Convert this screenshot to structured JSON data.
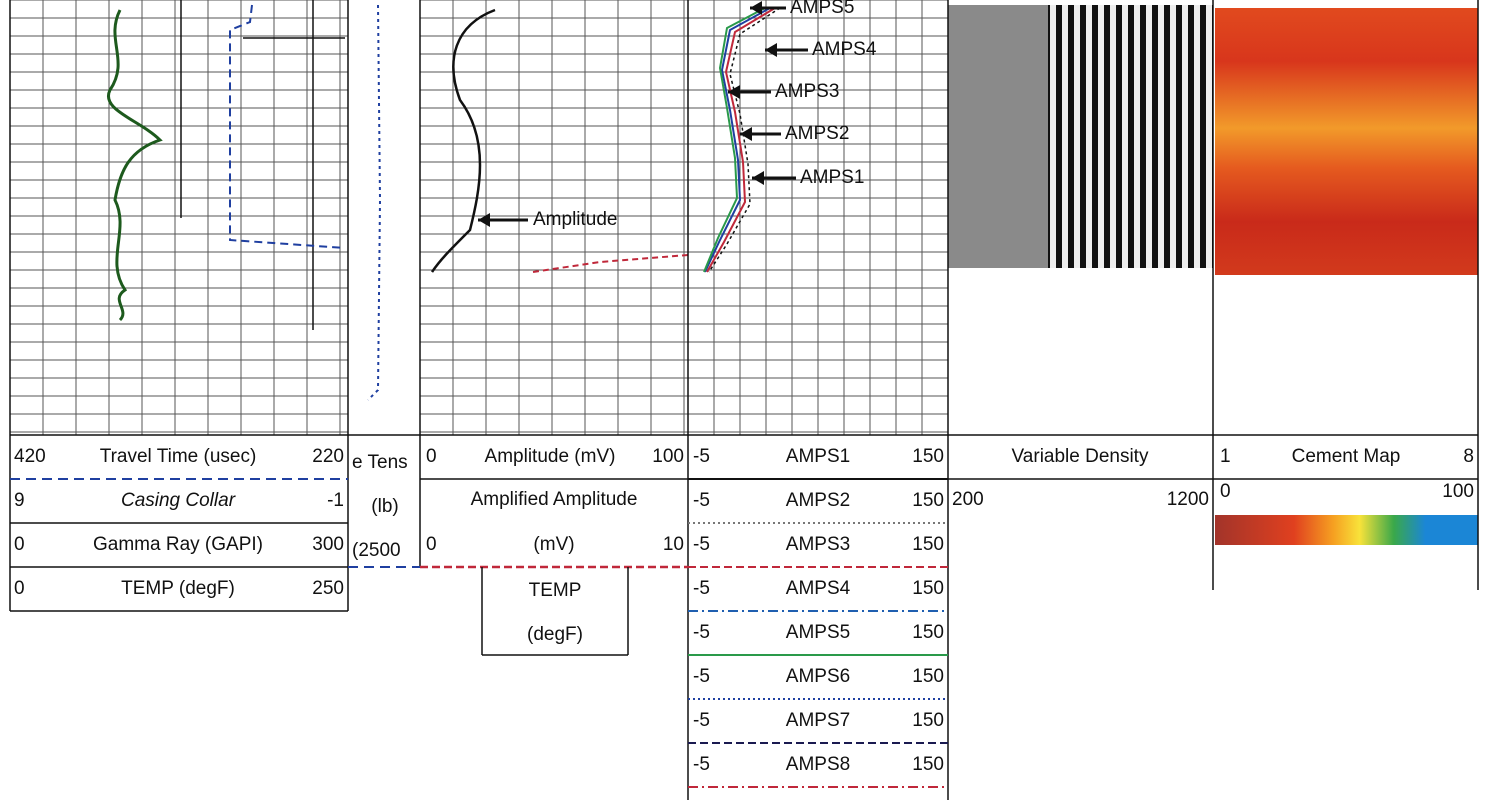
{
  "track_1_header": {
    "rows": [
      [
        "420",
        "Travel Time (usec)",
        "220"
      ],
      [
        "9",
        "Casing Collar",
        "-1"
      ],
      [
        "0",
        "Gamma Ray (GAPI)",
        "300"
      ],
      [
        "0",
        "TEMP (degF)",
        "250"
      ]
    ]
  },
  "track_2_header": [
    "e Tens",
    "(lb)",
    "(2500"
  ],
  "track_3_header": {
    "amplitude": [
      "0",
      "Amplitude (mV)",
      "100"
    ],
    "amplified_title": "Amplified Amplitude",
    "amplified": [
      "0",
      "(mV)",
      "10"
    ],
    "temp": [
      "TEMP",
      "(degF)"
    ]
  },
  "track_4_header": {
    "rows": [
      [
        "-5",
        "AMPS1",
        "150"
      ],
      [
        "-5",
        "AMPS2",
        "150"
      ],
      [
        "-5",
        "AMPS3",
        "150"
      ],
      [
        "-5",
        "AMPS4",
        "150"
      ],
      [
        "-5",
        "AMPS5",
        "150"
      ],
      [
        "-5",
        "AMPS6",
        "150"
      ],
      [
        "-5",
        "AMPS7",
        "150"
      ],
      [
        "-5",
        "AMPS8",
        "150"
      ]
    ]
  },
  "track_5_header": {
    "title": "Variable Density",
    "scale": [
      "200",
      "1200"
    ]
  },
  "track_6_header": {
    "title": [
      "1",
      "Cement Map",
      "8"
    ],
    "scale": [
      "0",
      "100"
    ]
  },
  "annotations": {
    "amplitude": "Amplitude",
    "amps": [
      "AMPS5",
      "AMPS4",
      "AMPS3",
      "AMPS2",
      "AMPS1"
    ]
  }
}
